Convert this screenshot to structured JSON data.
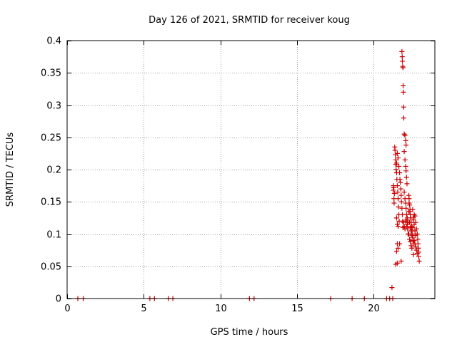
{
  "chart_data": {
    "type": "scatter",
    "title": "Day 126 of 2021, SRMTID for receiver koug",
    "xlabel": "GPS time / hours",
    "ylabel": "SRMTID / TECUs",
    "xlim": [
      0,
      24
    ],
    "ylim": [
      0,
      0.4
    ],
    "xticks": [
      0,
      5,
      10,
      15,
      20
    ],
    "yticks": [
      0,
      0.05,
      0.1,
      0.15,
      0.2,
      0.25,
      0.3,
      0.35,
      0.4
    ],
    "xtick_labels": [
      "0",
      "5",
      "10",
      "15",
      "20"
    ],
    "ytick_labels": [
      "0",
      "0.05",
      "0.1",
      "0.15",
      "0.2",
      "0.25",
      "0.3",
      "0.35",
      "0.4"
    ],
    "grid": true,
    "marker": "+",
    "color": "#cc0000",
    "series": [
      {
        "name": "SRMTID",
        "points": [
          [
            0.7,
            0
          ],
          [
            1.05,
            0
          ],
          [
            5.4,
            0
          ],
          [
            5.7,
            0
          ],
          [
            6.6,
            0
          ],
          [
            6.9,
            0
          ],
          [
            11.9,
            0
          ],
          [
            12.2,
            0
          ],
          [
            17.2,
            0
          ],
          [
            18.6,
            0
          ],
          [
            19.4,
            0
          ],
          [
            20.85,
            0
          ],
          [
            21.05,
            0
          ],
          [
            21.25,
            0
          ],
          [
            21.2,
            0.017
          ],
          [
            21.28,
            0.168
          ],
          [
            21.3,
            0.175
          ],
          [
            21.32,
            0.172
          ],
          [
            21.33,
            0.155
          ],
          [
            21.34,
            0.148
          ],
          [
            21.36,
            0.163
          ],
          [
            21.38,
            0.235
          ],
          [
            21.4,
            0.23
          ],
          [
            21.42,
            0.223
          ],
          [
            21.44,
            0.215
          ],
          [
            21.45,
            0.208
          ],
          [
            21.47,
            0.2
          ],
          [
            21.5,
            0.195
          ],
          [
            21.52,
            0.185
          ],
          [
            21.55,
            0.175
          ],
          [
            21.57,
            0.165
          ],
          [
            21.6,
            0.155
          ],
          [
            21.62,
            0.142
          ],
          [
            21.65,
            0.13
          ],
          [
            21.67,
            0.12
          ],
          [
            21.5,
            0.125
          ],
          [
            21.55,
            0.115
          ],
          [
            21.6,
            0.112
          ],
          [
            21.45,
            0.053
          ],
          [
            21.55,
            0.055
          ],
          [
            21.5,
            0.073
          ],
          [
            21.55,
            0.085
          ],
          [
            21.6,
            0.078
          ],
          [
            21.7,
            0.085
          ],
          [
            21.5,
            0.21
          ],
          [
            21.55,
            0.225
          ],
          [
            21.6,
            0.218
          ],
          [
            21.65,
            0.205
          ],
          [
            21.7,
            0.195
          ],
          [
            21.72,
            0.185
          ],
          [
            21.75,
            0.18
          ],
          [
            21.78,
            0.17
          ],
          [
            21.8,
            0.16
          ],
          [
            21.82,
            0.15
          ],
          [
            21.85,
            0.14
          ],
          [
            21.88,
            0.13
          ],
          [
            21.9,
            0.12
          ],
          [
            21.8,
            0.058
          ],
          [
            21.85,
            0.383
          ],
          [
            21.87,
            0.375
          ],
          [
            21.88,
            0.368
          ],
          [
            21.9,
            0.36
          ],
          [
            21.92,
            0.358
          ],
          [
            21.93,
            0.33
          ],
          [
            21.95,
            0.32
          ],
          [
            21.96,
            0.297
          ],
          [
            21.97,
            0.28
          ],
          [
            22.0,
            0.255
          ],
          [
            22.05,
            0.253
          ],
          [
            22.1,
            0.245
          ],
          [
            22.12,
            0.238
          ],
          [
            22.0,
            0.228
          ],
          [
            22.05,
            0.215
          ],
          [
            22.1,
            0.205
          ],
          [
            22.12,
            0.198
          ],
          [
            22.15,
            0.188
          ],
          [
            22.18,
            0.178
          ],
          [
            22.0,
            0.165
          ],
          [
            22.05,
            0.155
          ],
          [
            22.1,
            0.148
          ],
          [
            22.12,
            0.14
          ],
          [
            22.15,
            0.13
          ],
          [
            22.18,
            0.122
          ],
          [
            22.2,
            0.115
          ],
          [
            22.22,
            0.108
          ],
          [
            22.25,
            0.1
          ],
          [
            22.0,
            0.112
          ],
          [
            22.05,
            0.108
          ],
          [
            22.1,
            0.12
          ],
          [
            22.15,
            0.112
          ],
          [
            21.95,
            0.118
          ],
          [
            21.92,
            0.11
          ],
          [
            22.3,
            0.16
          ],
          [
            22.32,
            0.155
          ],
          [
            22.35,
            0.145
          ],
          [
            22.38,
            0.138
          ],
          [
            22.4,
            0.13
          ],
          [
            22.42,
            0.125
          ],
          [
            22.45,
            0.118
          ],
          [
            22.48,
            0.112
          ],
          [
            22.5,
            0.105
          ],
          [
            22.52,
            0.1
          ],
          [
            22.55,
            0.095
          ],
          [
            22.58,
            0.09
          ],
          [
            22.6,
            0.085
          ],
          [
            22.3,
            0.1
          ],
          [
            22.35,
            0.092
          ],
          [
            22.4,
            0.088
          ],
          [
            22.45,
            0.082
          ],
          [
            22.5,
            0.078
          ],
          [
            22.35,
            0.118
          ],
          [
            22.4,
            0.11
          ],
          [
            22.45,
            0.105
          ],
          [
            22.5,
            0.098
          ],
          [
            22.55,
            0.11
          ],
          [
            22.6,
            0.122
          ],
          [
            22.65,
            0.13
          ],
          [
            22.7,
            0.128
          ],
          [
            22.75,
            0.118
          ],
          [
            22.8,
            0.108
          ],
          [
            22.85,
            0.1
          ],
          [
            22.88,
            0.092
          ],
          [
            22.9,
            0.085
          ],
          [
            22.92,
            0.078
          ],
          [
            22.95,
            0.072
          ],
          [
            22.95,
            0.065
          ],
          [
            22.98,
            0.058
          ],
          [
            22.65,
            0.09
          ],
          [
            22.7,
            0.085
          ],
          [
            22.75,
            0.08
          ],
          [
            22.8,
            0.075
          ],
          [
            22.85,
            0.07
          ],
          [
            22.6,
            0.068
          ],
          [
            22.2,
            0.125
          ],
          [
            22.25,
            0.118
          ],
          [
            22.28,
            0.135
          ],
          [
            22.32,
            0.148
          ],
          [
            22.36,
            0.135
          ],
          [
            22.55,
            0.138
          ],
          [
            22.6,
            0.125
          ],
          [
            22.65,
            0.115
          ],
          [
            22.7,
            0.105
          ],
          [
            22.75,
            0.098
          ]
        ]
      }
    ]
  }
}
